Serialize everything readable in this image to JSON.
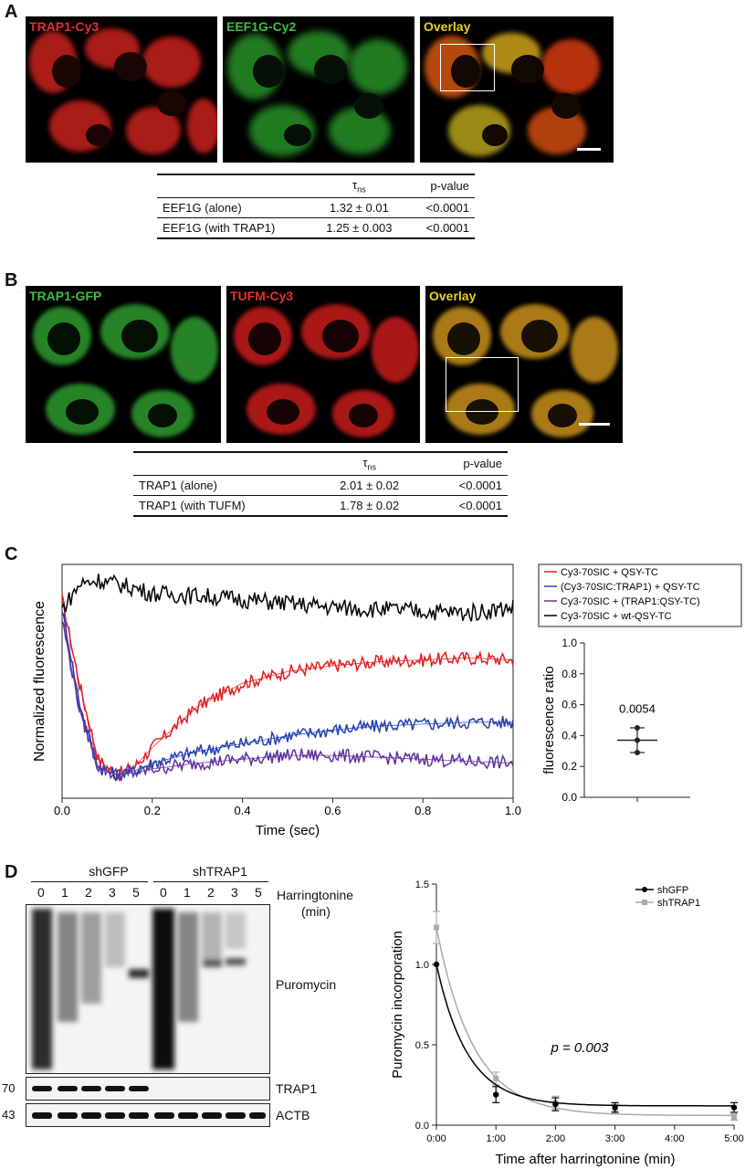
{
  "panelA": {
    "letter": "A",
    "images": [
      {
        "label": "TRAP1-Cy3",
        "color": "#e53030"
      },
      {
        "label": "EEF1G-Cy2",
        "color": "#3fbf3f"
      },
      {
        "label": "Overlay",
        "color": "#e8d21a"
      }
    ],
    "table": {
      "header": [
        "",
        "τns",
        "p-value"
      ],
      "rows": [
        [
          "EEF1G (alone)",
          "1.32 ± 0.01",
          "<0.0001"
        ],
        [
          "EEF1G (with TRAP1)",
          "1.25 ± 0.003",
          "<0.0001"
        ]
      ]
    }
  },
  "panelB": {
    "letter": "B",
    "images": [
      {
        "label": "TRAP1-GFP",
        "color": "#3fbf3f"
      },
      {
        "label": "TUFM-Cy3",
        "color": "#e53030"
      },
      {
        "label": "Overlay",
        "color": "#e8d21a"
      }
    ],
    "table": {
      "header": [
        "",
        "τns",
        "p-value"
      ],
      "rows": [
        [
          "TRAP1 (alone)",
          "2.01 ± 0.02",
          "<0.0001"
        ],
        [
          "TRAP1 (with TUFM)",
          "1.78 ± 0.02",
          "<0.0001"
        ]
      ]
    }
  },
  "panelC": {
    "letter": "C"
  },
  "panelD": {
    "letter": "D",
    "groups": [
      "shGFP",
      "shTRAP1"
    ],
    "lanes": [
      "0",
      "1",
      "2",
      "3",
      "5",
      "0",
      "1",
      "2",
      "3",
      "5"
    ],
    "treatment": "Harringtonine",
    "treatment_unit": "(min)",
    "blots": [
      "Puromycin",
      "TRAP1",
      "ACTB"
    ],
    "markers": [
      "70",
      "43"
    ]
  },
  "chart_data": [
    {
      "type": "line",
      "xlabel": "Time (sec)",
      "ylabel": "Normalized fluorescence",
      "xlim": [
        0,
        1.0
      ],
      "xticks": [
        "0.0",
        "0.2",
        "0.4",
        "0.6",
        "0.8",
        "1.0"
      ],
      "series": [
        {
          "name": "Cy3-70SIC + QSY-TC",
          "color": "#e02020",
          "x": [
            0,
            0.04,
            0.08,
            0.12,
            0.16,
            0.2,
            0.3,
            0.4,
            0.5,
            0.6,
            0.7,
            0.8,
            0.9,
            1.0
          ],
          "y": [
            1.0,
            0.55,
            0.18,
            0.1,
            0.14,
            0.24,
            0.45,
            0.57,
            0.63,
            0.66,
            0.68,
            0.69,
            0.7,
            0.69
          ]
        },
        {
          "name": "(Cy3-70SIC:TRAP1) + QSY-TC",
          "color": "#2040b0",
          "x": [
            0,
            0.04,
            0.08,
            0.12,
            0.16,
            0.2,
            0.3,
            0.4,
            0.5,
            0.6,
            0.7,
            0.8,
            0.9,
            1.0
          ],
          "y": [
            0.95,
            0.45,
            0.14,
            0.1,
            0.12,
            0.16,
            0.22,
            0.26,
            0.3,
            0.33,
            0.35,
            0.36,
            0.37,
            0.37
          ]
        },
        {
          "name": "Cy3-70SIC + (TRAP1:QSY-TC)",
          "color": "#6030a0",
          "x": [
            0,
            0.04,
            0.08,
            0.12,
            0.16,
            0.2,
            0.3,
            0.4,
            0.5,
            0.6,
            0.7,
            0.8,
            0.9,
            1.0
          ],
          "y": [
            0.9,
            0.42,
            0.14,
            0.1,
            0.11,
            0.13,
            0.16,
            0.18,
            0.2,
            0.2,
            0.19,
            0.18,
            0.17,
            0.16
          ]
        },
        {
          "name": "Cy3-70SIC + wt-QSY-TC",
          "color": "#000000",
          "x": [
            0,
            0.04,
            0.08,
            0.12,
            0.16,
            0.2,
            0.3,
            0.4,
            0.5,
            0.6,
            0.7,
            0.8,
            0.9,
            1.0
          ],
          "y": [
            0.95,
            1.08,
            1.1,
            1.08,
            1.06,
            1.03,
            1.02,
            1.0,
            0.98,
            0.96,
            0.95,
            0.94,
            0.93,
            0.96
          ]
        }
      ]
    },
    {
      "type": "scatter",
      "ylabel": "fluorescence ratio",
      "ylim": [
        0,
        1.0
      ],
      "yticks": [
        "0.0",
        "0.2",
        "0.4",
        "0.6",
        "0.8",
        "1.0"
      ],
      "values": [
        0.45,
        0.37,
        0.29
      ],
      "mean": 0.37,
      "sd": 0.08,
      "annotation": "0.0054"
    },
    {
      "type": "line",
      "xlabel": "Time after harringtonine (min)",
      "ylabel": "Puromycin incorporation",
      "ylim": [
        0,
        1.5
      ],
      "yticks": [
        "0.0",
        "0.5",
        "1.0",
        "1.5"
      ],
      "xticks": [
        "0:00",
        "1:00",
        "2:00",
        "3:00",
        "4:00",
        "5:00"
      ],
      "annotation": "p = 0.003",
      "series": [
        {
          "name": "shGFP",
          "color": "#000000",
          "x": [
            0,
            1,
            2,
            3,
            5
          ],
          "y": [
            1.0,
            0.19,
            0.13,
            0.11,
            0.11
          ],
          "err": [
            0,
            0.05,
            0.04,
            0.03,
            0.03
          ]
        },
        {
          "name": "shTRAP1",
          "color": "#aaaaaa",
          "x": [
            0,
            1,
            2,
            3,
            5
          ],
          "y": [
            1.23,
            0.29,
            0.14,
            0.1,
            0.05
          ],
          "err": [
            0.1,
            0.04,
            0.04,
            0.03,
            0.02
          ]
        }
      ]
    }
  ]
}
